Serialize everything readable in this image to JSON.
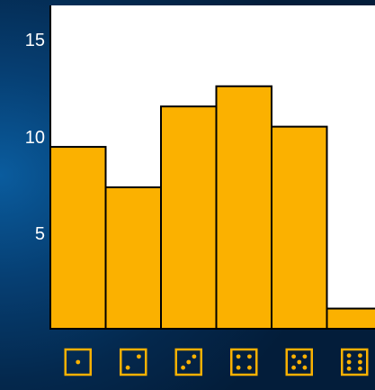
{
  "chart_data": {
    "type": "bar",
    "categories": [
      "1",
      "2",
      "3",
      "4",
      "5",
      "6"
    ],
    "category_icons": [
      "die-face-1-icon",
      "die-face-2-icon",
      "die-face-3-icon",
      "die-face-4-icon",
      "die-face-5-icon",
      "die-face-6-icon"
    ],
    "values": [
      9,
      7,
      11,
      12,
      10,
      1
    ],
    "ylim": [
      0,
      16
    ],
    "yticks": [
      "5",
      "10",
      "15"
    ],
    "title": "",
    "xlabel": "",
    "ylabel": "",
    "grid": false,
    "legend": "none",
    "colors": {
      "bar_fill": "#fbb100",
      "bar_outline": "#000000",
      "plot_background": "#ffffff",
      "die_stroke": "#fbb100",
      "tick_text": "#ffffff"
    }
  }
}
